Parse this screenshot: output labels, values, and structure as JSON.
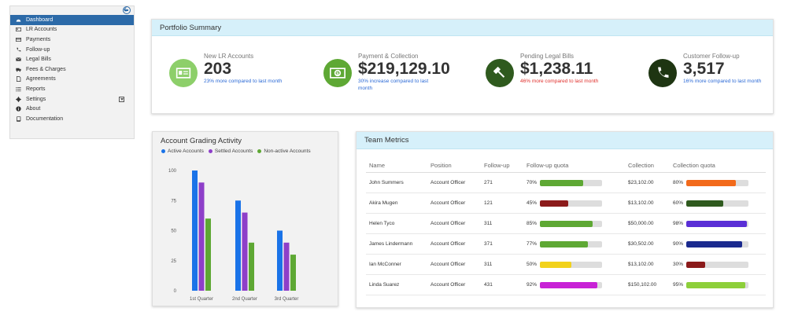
{
  "sidebar": {
    "items": [
      {
        "label": "Dashboard",
        "icon": "dashboard-icon",
        "active": true
      },
      {
        "label": "LR Accounts",
        "icon": "id-card-icon"
      },
      {
        "label": "Payments",
        "icon": "credit-card-icon"
      },
      {
        "label": "Follow-up",
        "icon": "phone-icon"
      },
      {
        "label": "Legal Bills",
        "icon": "envelope-icon"
      },
      {
        "label": "Fees & Charges",
        "icon": "truck-icon"
      },
      {
        "label": "Agreements",
        "icon": "document-icon"
      },
      {
        "label": "Reports",
        "icon": "list-icon"
      },
      {
        "label": "Settings",
        "icon": "gear-icon",
        "expandable": true
      },
      {
        "label": "About",
        "icon": "info-icon"
      },
      {
        "label": "Documentation",
        "icon": "book-icon"
      }
    ]
  },
  "summary": {
    "title": "Portfolio Summary",
    "stats": [
      {
        "label": "New LR Accounts",
        "value": "203",
        "note": "23% more compared to last month",
        "note_color": "#2c6ad6",
        "icon": "id-card-icon",
        "icon_bg": "#8dcf6a"
      },
      {
        "label": "Payment & Collection",
        "value": "$219,129.10",
        "note": "30% increase compared to last month",
        "note_color": "#2c6ad6",
        "icon": "money-icon",
        "icon_bg": "#5ea834"
      },
      {
        "label": "Pending Legal Bills",
        "value": "$1,238.11",
        "note": "46% more compared to last month",
        "note_color": "#e0302c",
        "icon": "gavel-icon",
        "icon_bg": "#2f5a1e"
      },
      {
        "label": "Customer Follow-up",
        "value": "3,517",
        "note": "16% more compared to last month",
        "note_color": "#2c6ad6",
        "icon": "phone-icon",
        "icon_bg": "#1e3512"
      }
    ]
  },
  "grading": {
    "title": "Account Grading Activity"
  },
  "chart_data": {
    "type": "bar",
    "title": "Account Grading Activity",
    "categories": [
      "1st Quarter",
      "2nd Quarter",
      "3rd Quarter"
    ],
    "series": [
      {
        "name": "Active Accounts",
        "color": "#1a73e8",
        "values": [
          100,
          75,
          50
        ]
      },
      {
        "name": "Settled Accounts",
        "color": "#8e3fc9",
        "values": [
          90,
          65,
          40
        ]
      },
      {
        "name": "Non-active Accounts",
        "color": "#5ea834",
        "values": [
          60,
          40,
          30
        ]
      }
    ],
    "ylim": [
      0,
      100
    ],
    "yticks": [
      "0",
      "25",
      "50",
      "75",
      "100"
    ],
    "legend": "top-left",
    "grid": false
  },
  "metrics": {
    "title": "Team Metrics",
    "headers": [
      "Name",
      "Position",
      "Follow-up",
      "Follow-up quota",
      "Collection",
      "Collection quota"
    ],
    "rows": [
      {
        "name": "John Summers",
        "position": "Account Officer",
        "followup": "271",
        "fq_pct": "70%",
        "fq": 0.7,
        "fq_color": "#5ea834",
        "collection": "$23,102.00",
        "cq_pct": "80%",
        "cq": 0.8,
        "cq_color": "#f26a1b"
      },
      {
        "name": "Akira Mugen",
        "position": "Account Officer",
        "followup": "121",
        "fq_pct": "45%",
        "fq": 0.45,
        "fq_color": "#8b1a1a",
        "collection": "$13,102.00",
        "cq_pct": "60%",
        "cq": 0.6,
        "cq_color": "#2f5a1e"
      },
      {
        "name": "Helen Tyco",
        "position": "Account Officer",
        "followup": "311",
        "fq_pct": "85%",
        "fq": 0.85,
        "fq_color": "#5ea834",
        "collection": "$50,000.00",
        "cq_pct": "98%",
        "cq": 0.98,
        "cq_color": "#5a2fd6"
      },
      {
        "name": "James Lindermann",
        "position": "Account Officer",
        "followup": "371",
        "fq_pct": "77%",
        "fq": 0.77,
        "fq_color": "#5ea834",
        "collection": "$30,502.00",
        "cq_pct": "90%",
        "cq": 0.9,
        "cq_color": "#1a2a8e"
      },
      {
        "name": "Ian McConner",
        "position": "Account Officer",
        "followup": "311",
        "fq_pct": "50%",
        "fq": 0.5,
        "fq_color": "#f2d21b",
        "collection": "$13,102.00",
        "cq_pct": "30%",
        "cq": 0.3,
        "cq_color": "#8b1a1a"
      },
      {
        "name": "Linda Suarez",
        "position": "Account Officer",
        "followup": "431",
        "fq_pct": "92%",
        "fq": 0.92,
        "fq_color": "#c822d6",
        "collection": "$150,102.00",
        "cq_pct": "95%",
        "cq": 0.95,
        "cq_color": "#8dcf3a"
      }
    ]
  }
}
